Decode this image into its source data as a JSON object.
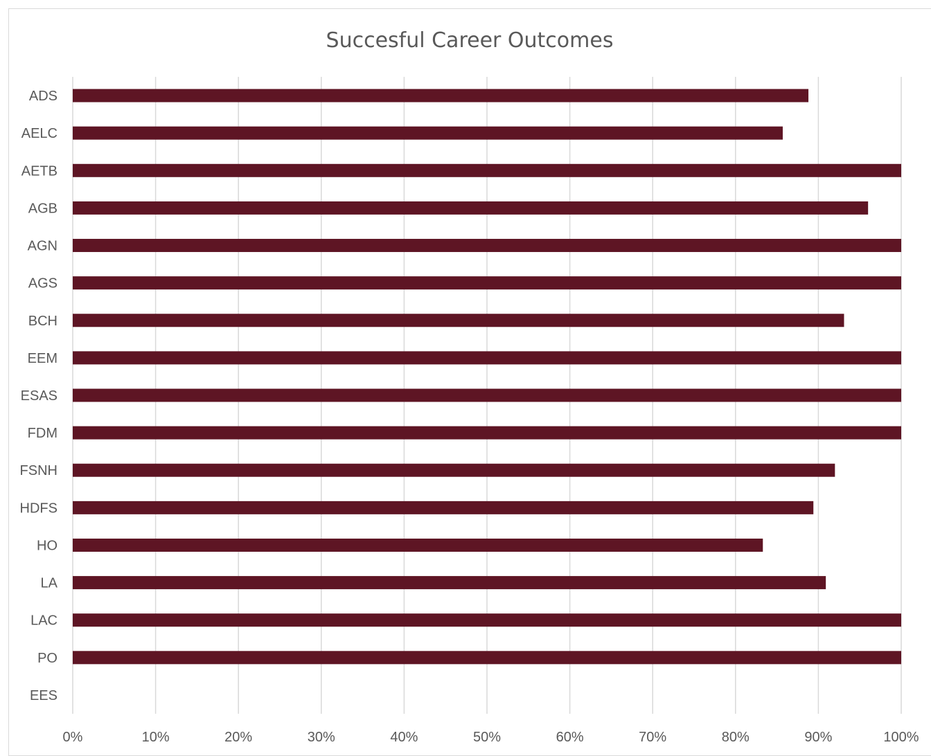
{
  "chart_data": {
    "type": "bar",
    "orientation": "horizontal",
    "title": "Succesful Career Outcomes",
    "xlabel": "",
    "ylabel": "",
    "categories": [
      "ADS",
      "AELC",
      "AETB",
      "AGB",
      "AGN",
      "AGS",
      "BCH",
      "EEM",
      "ESAS",
      "FDM",
      "FSNH",
      "HDFS",
      "HO",
      "LA",
      "LAC",
      "PO",
      "EES"
    ],
    "values": [
      88.8,
      85.7,
      100,
      96,
      100,
      100,
      93.1,
      100,
      100,
      100,
      92,
      89.4,
      83.3,
      90.9,
      100,
      100,
      0
    ],
    "xlim": [
      0,
      100
    ],
    "x_ticks": [
      "0%",
      "10%",
      "20%",
      "30%",
      "40%",
      "50%",
      "60%",
      "70%",
      "80%",
      "90%",
      "100%"
    ],
    "grid": true,
    "legend": "none",
    "bar_color": "#5e1524"
  }
}
